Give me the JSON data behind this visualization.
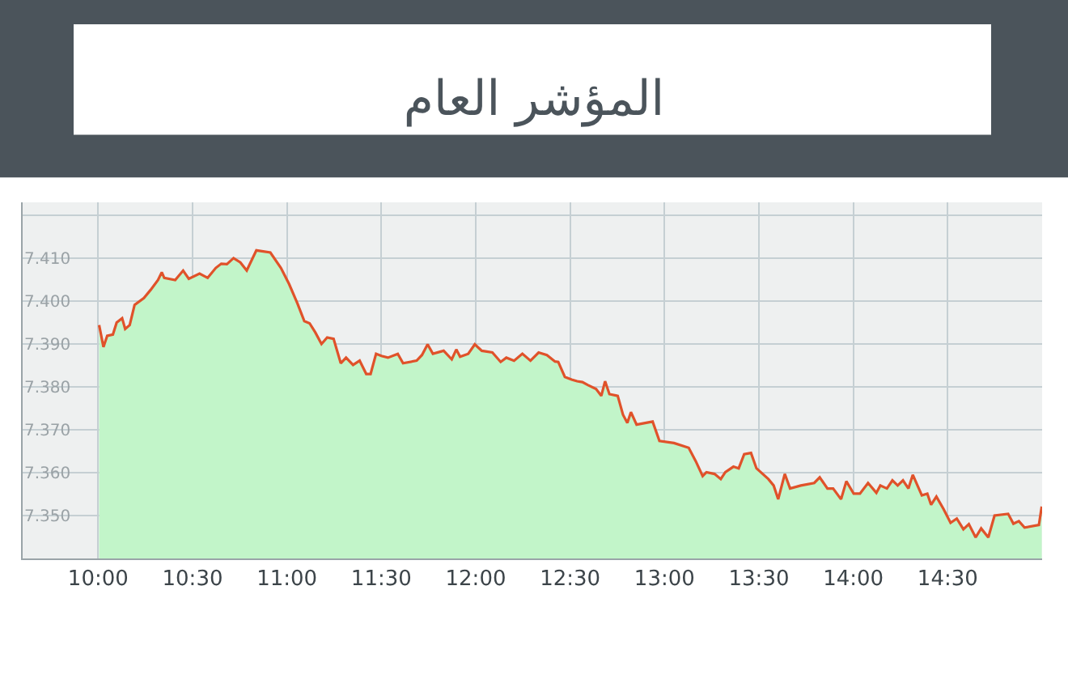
{
  "chart_data": {
    "type": "area",
    "title": "المؤشر العام",
    "x": [
      10.005,
      10.028,
      10.048,
      10.078,
      10.098,
      10.127,
      10.143,
      10.167,
      10.193,
      10.242,
      10.278,
      10.317,
      10.337,
      10.35,
      10.408,
      10.45,
      10.48,
      10.537,
      10.58,
      10.623,
      10.652,
      10.682,
      10.717,
      10.753,
      10.787,
      10.838,
      10.912,
      10.968,
      11.012,
      11.055,
      11.092,
      11.12,
      11.15,
      11.183,
      11.213,
      11.247,
      11.285,
      11.313,
      11.35,
      11.385,
      11.42,
      11.443,
      11.472,
      11.5,
      11.535,
      11.587,
      11.615,
      11.687,
      11.715,
      11.745,
      11.773,
      11.83,
      11.873,
      11.897,
      11.917,
      11.96,
      11.995,
      12.032,
      12.088,
      12.132,
      12.162,
      12.203,
      12.247,
      12.29,
      12.333,
      12.377,
      12.42,
      12.437,
      12.472,
      12.508,
      12.537,
      12.565,
      12.595,
      12.637,
      12.665,
      12.685,
      12.708,
      12.752,
      12.78,
      12.803,
      12.822,
      12.852,
      12.937,
      12.973,
      13.05,
      13.128,
      13.165,
      13.202,
      13.222,
      13.265,
      13.298,
      13.322,
      13.365,
      13.393,
      13.422,
      13.458,
      13.487,
      13.55,
      13.578,
      13.602,
      13.637,
      13.665,
      13.722,
      13.793,
      13.822,
      13.863,
      13.893,
      13.935,
      13.963,
      14.002,
      14.035,
      14.078,
      14.122,
      14.143,
      14.178,
      14.207,
      14.235,
      14.263,
      14.292,
      14.315,
      14.363,
      14.392,
      14.412,
      14.44,
      14.478,
      14.515,
      14.548,
      14.583,
      14.612,
      14.648,
      14.677,
      14.715,
      14.748,
      14.82,
      14.848,
      14.877,
      14.907,
      14.983,
      14.998
    ],
    "series": [
      {
        "color": "#c2f5c9",
        "values": [
          7394.4,
          7389.3,
          7391.9,
          7392.2,
          7395,
          7396,
          7393.5,
          7394.4,
          7399.1,
          7400.7,
          7402.6,
          7404.9,
          7406.7,
          7405.4,
          7404.9,
          7407.1,
          7405.2,
          7406.4,
          7405.4,
          7407.7,
          7408.7,
          7408.6,
          7410,
          7409,
          7407.1,
          7411.8,
          7411.3,
          7407.7,
          7403.9,
          7399.5,
          7395.3,
          7394.8,
          7392.7,
          7390,
          7391.5,
          7391.2,
          7385.5,
          7386.8,
          7385.1,
          7386.1,
          7383,
          7383,
          7387.7,
          7387.2,
          7386.8,
          7387.7,
          7385.5,
          7386.1,
          7387.4,
          7389.9,
          7387.7,
          7388.4,
          7386.4,
          7388.7,
          7387,
          7387.7,
          7389.9,
          7388.4,
          7388,
          7385.8,
          7386.8,
          7386.1,
          7387.7,
          7386.1,
          7388,
          7387.4,
          7385.9,
          7385.8,
          7382.3,
          7381.7,
          7381.3,
          7381.1,
          7380.4,
          7379.5,
          7377.9,
          7381.3,
          7378.3,
          7377.9,
          7373.5,
          7371.6,
          7374.1,
          7371.2,
          7371.9,
          7367.4,
          7366.9,
          7365.8,
          7362.7,
          7359.2,
          7360.1,
          7359.7,
          7358.5,
          7360.1,
          7361.4,
          7361,
          7364.3,
          7364.6,
          7361,
          7358.5,
          7357,
          7353.8,
          7359.7,
          7356.3,
          7357,
          7357.6,
          7358.9,
          7356.3,
          7356.3,
          7353.8,
          7358,
          7355.1,
          7355.1,
          7357.6,
          7355.3,
          7357,
          7356.3,
          7358.2,
          7357,
          7358.2,
          7356.3,
          7359.5,
          7354.7,
          7355.1,
          7352.5,
          7354.4,
          7351.5,
          7348.3,
          7349.3,
          7346.8,
          7348,
          7344.9,
          7347,
          7344.9,
          7350,
          7350.4,
          7348.1,
          7348.7,
          7347.2,
          7347.8,
          7352.1
        ]
      },
      {
        "type": "line",
        "color": "#e0522a",
        "values": [
          7394.4,
          7389.3,
          7391.9,
          7392.2,
          7395,
          7396,
          7393.5,
          7394.4,
          7399.1,
          7400.7,
          7402.6,
          7404.9,
          7406.7,
          7405.4,
          7404.9,
          7407.1,
          7405.2,
          7406.4,
          7405.4,
          7407.7,
          7408.7,
          7408.6,
          7410,
          7409,
          7407.1,
          7411.8,
          7411.3,
          7407.7,
          7403.9,
          7399.5,
          7395.3,
          7394.8,
          7392.7,
          7390,
          7391.5,
          7391.2,
          7385.5,
          7386.8,
          7385.1,
          7386.1,
          7383,
          7383,
          7387.7,
          7387.2,
          7386.8,
          7387.7,
          7385.5,
          7386.1,
          7387.4,
          7389.9,
          7387.7,
          7388.4,
          7386.4,
          7388.7,
          7387,
          7387.7,
          7389.9,
          7388.4,
          7388,
          7385.8,
          7386.8,
          7386.1,
          7387.7,
          7386.1,
          7388,
          7387.4,
          7385.9,
          7385.8,
          7382.3,
          7381.7,
          7381.3,
          7381.1,
          7380.4,
          7379.5,
          7377.9,
          7381.3,
          7378.3,
          7377.9,
          7373.5,
          7371.6,
          7374.1,
          7371.2,
          7371.9,
          7367.4,
          7366.9,
          7365.8,
          7362.7,
          7359.2,
          7360.1,
          7359.7,
          7358.5,
          7360.1,
          7361.4,
          7361,
          7364.3,
          7364.6,
          7361,
          7358.5,
          7357,
          7353.8,
          7359.7,
          7356.3,
          7357,
          7357.6,
          7358.9,
          7356.3,
          7356.3,
          7353.8,
          7358,
          7355.1,
          7355.1,
          7357.6,
          7355.3,
          7357,
          7356.3,
          7358.2,
          7357,
          7358.2,
          7356.3,
          7359.5,
          7354.7,
          7355.1,
          7352.5,
          7354.4,
          7351.5,
          7348.3,
          7349.3,
          7346.8,
          7348,
          7344.9,
          7347,
          7344.9,
          7350,
          7350.4,
          7348.1,
          7348.7,
          7347.2,
          7347.8,
          7352.1
        ]
      }
    ],
    "xlim": [
      9.6,
      15.0
    ],
    "xticks": [
      {
        "value": 10,
        "label": "10:00"
      },
      {
        "value": 10.5,
        "label": "10:30"
      },
      {
        "value": 11,
        "label": "11:00"
      },
      {
        "value": 11.5,
        "label": "11:30"
      },
      {
        "value": 12,
        "label": "12:00"
      },
      {
        "value": 12.5,
        "label": "12:30"
      },
      {
        "value": 13,
        "label": "13:00"
      },
      {
        "value": 13.5,
        "label": "13:30"
      },
      {
        "value": 14,
        "label": "14:00"
      },
      {
        "value": 14.5,
        "label": "14:30"
      }
    ],
    "ylim": [
      7340,
      7423
    ],
    "yticks": [
      {
        "value": 7350,
        "label": "7.350"
      },
      {
        "value": 7360,
        "label": "7.360"
      },
      {
        "value": 7370,
        "label": "7.370"
      },
      {
        "value": 7380,
        "label": "7.380"
      },
      {
        "value": 7390,
        "label": "7.390"
      },
      {
        "value": 7400,
        "label": "7.400"
      },
      {
        "value": 7410,
        "label": "7.410"
      },
      {
        "value": 7420,
        "label": null
      }
    ],
    "grid": true,
    "marker": "none",
    "line_style": "solid"
  }
}
